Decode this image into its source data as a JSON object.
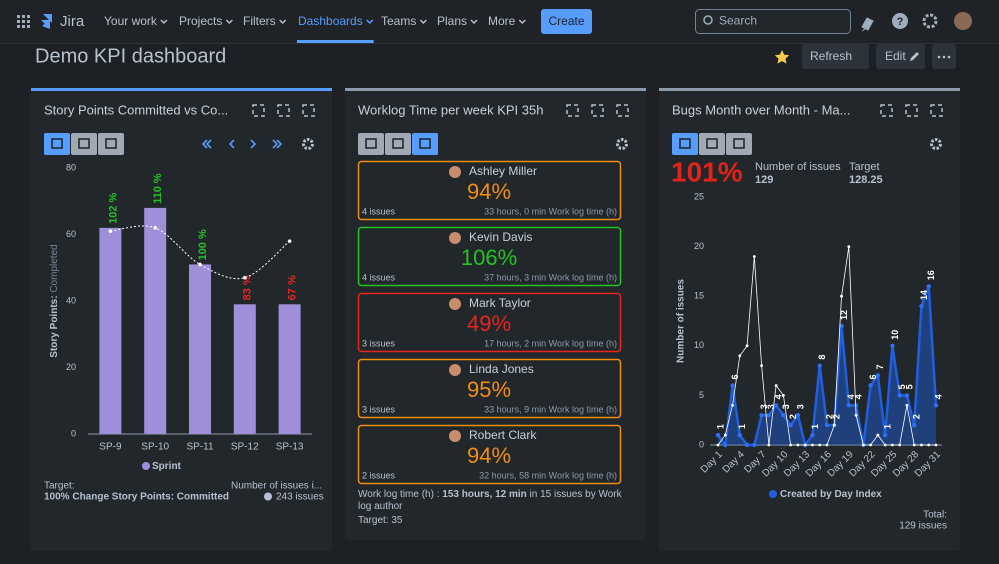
{
  "nav": {
    "logo": "Jira",
    "items": [
      "Your work",
      "Projects",
      "Filters",
      "Dashboards",
      "Teams",
      "Plans",
      "More"
    ],
    "active": 3,
    "create": "Create",
    "search": "Search"
  },
  "header": {
    "title": "Demo KPI dashboard",
    "refresh": "Refresh",
    "edit": "Edit"
  },
  "gadgets": [
    {
      "title": "Story Points Committed vs Co...",
      "target_label": "Target:",
      "target_value": "100% Change Story Points: Committed",
      "issues_label": "Number of issues i...",
      "issues_value": "243 issues"
    },
    {
      "title": "Worklog Time per week KPI 35h",
      "cards": [
        {
          "name": "Ashley Miller",
          "pct": "94%",
          "issues": "4 issues",
          "detail": "33 hours, 0 min Work log time (h)",
          "color": "#f18d13"
        },
        {
          "name": "Kevin Davis",
          "pct": "106%",
          "issues": "4 issues",
          "detail": "37 hours, 3 min Work log time (h)",
          "color": "#22c322"
        },
        {
          "name": "Mark Taylor",
          "pct": "49%",
          "issues": "3 issues",
          "detail": "17 hours, 2 min Work log time (h)",
          "color": "#e5251e"
        },
        {
          "name": "Linda Jones",
          "pct": "95%",
          "issues": "3 issues",
          "detail": "33 hours, 9 min Work log time (h)",
          "color": "#f18d13"
        },
        {
          "name": "Robert Clark",
          "pct": "94%",
          "issues": "2 issues",
          "detail": "32 hours, 58 min Work log time (h)",
          "color": "#f18d13"
        }
      ],
      "summary_label": "Work log time (h) :",
      "summary_value": "153 hours, 12 min",
      "summary_rest": "in 15 issues by Work log author",
      "target": "Target: 35"
    },
    {
      "title": "Bugs Month over Month - Ma...",
      "kpi": "101%",
      "issues_label": "Number of issues",
      "issues_value": "129",
      "target_label": "Target",
      "target_value": "128.25",
      "total_label": "Total:",
      "total_value": "129 issues"
    }
  ],
  "chart_data": [
    {
      "type": "bar",
      "categories": [
        "SP-9",
        "SP-10",
        "SP-11",
        "SP-12",
        "SP-13"
      ],
      "series": [
        {
          "name": "Sprint",
          "color": "#9f8fdb",
          "values": [
            62,
            68,
            51,
            39,
            39
          ]
        }
      ],
      "completion": {
        "values": [
          102,
          110,
          100,
          83,
          67
        ],
        "value_labels": [
          "102 %",
          "110 %",
          "100 %",
          "83 %",
          "67 %"
        ],
        "colors": [
          "#22c322",
          "#22c322",
          "#22c322",
          "#e5251e",
          "#e5251e"
        ]
      },
      "trend": {
        "color": "#ffffff",
        "values": [
          61,
          62,
          51,
          47,
          58
        ]
      },
      "ylabel": "Story Points:",
      "ylabel_suffix": "Completed",
      "ylim": [
        0,
        80
      ],
      "yticks": [
        0,
        20,
        40,
        60,
        80
      ],
      "grid": false
    },
    {
      "type": "area",
      "categories": [
        "Day 1",
        null,
        null,
        "Day 4",
        null,
        null,
        "Day 7",
        null,
        null,
        "Day 10",
        null,
        null,
        "Day 13",
        null,
        null,
        "Day 16",
        null,
        null,
        "Day 19",
        null,
        null,
        "Day 22",
        null,
        null,
        "Day 25",
        null,
        null,
        "Day 28",
        null,
        null,
        "Day 31"
      ],
      "series": [
        {
          "name": "Created by Day Index",
          "color": "#1f5fe0",
          "values": [
            1,
            0,
            6,
            1,
            0,
            0,
            3,
            3,
            4,
            3,
            2,
            3,
            0,
            1,
            8,
            2,
            2,
            12,
            4,
            4,
            0,
            6,
            7,
            1,
            10,
            5,
            5,
            2,
            14,
            16,
            4
          ]
        },
        {
          "color": "#ffffff",
          "values": [
            0,
            1,
            4,
            9,
            10,
            19,
            8,
            0,
            6,
            5,
            0,
            0,
            0,
            0,
            0,
            0,
            2,
            15,
            20,
            3,
            0,
            0,
            1,
            0,
            0,
            0,
            4,
            0,
            0,
            0,
            0
          ]
        }
      ],
      "ylabel": "Number of issues",
      "ylim": [
        0,
        25
      ],
      "yticks": [
        0,
        5,
        10,
        15,
        20,
        25
      ],
      "grid": false
    }
  ]
}
